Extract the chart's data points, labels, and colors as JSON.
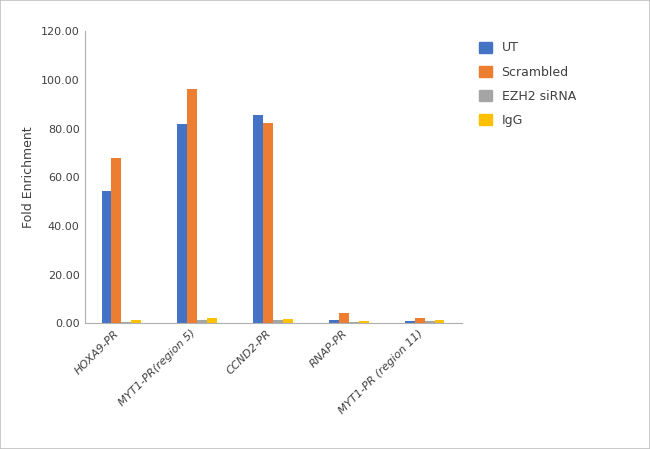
{
  "categories": [
    "HOXA9-PR",
    "MYT1-PR(region 5)",
    "CCND2-PR",
    "RNAP-PR",
    "MYT1-PR (region 11)"
  ],
  "series": {
    "UT": [
      54.5,
      82.0,
      85.5,
      1.2,
      0.8
    ],
    "Scrambled": [
      68.0,
      96.5,
      82.5,
      4.2,
      2.2
    ],
    "EZH2 siRNA": [
      0.5,
      1.5,
      1.5,
      0.5,
      1.0
    ],
    "IgG": [
      1.2,
      2.0,
      1.8,
      0.8,
      1.5
    ]
  },
  "colors": {
    "UT": "#4472C4",
    "Scrambled": "#ED7D31",
    "EZH2 siRNA": "#A5A5A5",
    "IgG": "#FFC000"
  },
  "ylabel": "Fold Enrichment",
  "ylim": [
    0,
    120
  ],
  "yticks": [
    0.0,
    20.0,
    40.0,
    60.0,
    80.0,
    100.0,
    120.0
  ],
  "bar_width": 0.13,
  "legend_labels": [
    "UT",
    "Scrambled",
    "EZH2 siRNA",
    "IgG"
  ],
  "background_color": "#ffffff",
  "outer_border_color": "#c0c0c0",
  "tick_label_fontsize": 8,
  "axis_label_fontsize": 9,
  "legend_fontsize": 9
}
